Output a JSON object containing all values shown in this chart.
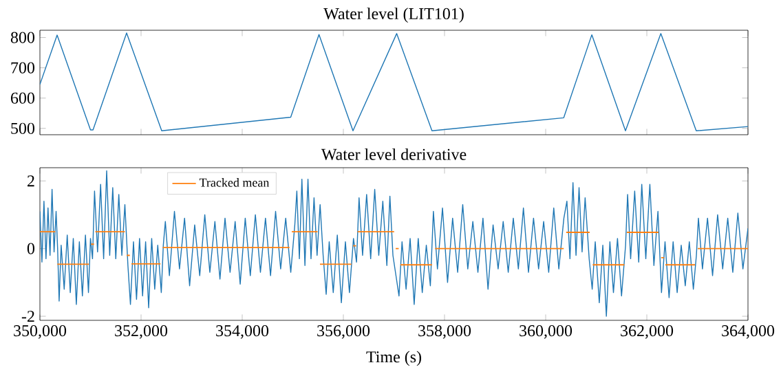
{
  "chart_data": [
    {
      "type": "line",
      "title": "Water level (LIT101)",
      "tick_labels": "y",
      "xlim": [
        350000,
        364000
      ],
      "ylim": [
        479,
        824
      ],
      "xticks": [
        350000,
        352000,
        354000,
        356000,
        358000,
        360000,
        362000,
        364000
      ],
      "yticks": [
        500,
        600,
        700,
        800
      ],
      "series": [
        {
          "color": "#1f77b4",
          "x": [
            350000,
            350340,
            351000,
            351050,
            351714,
            352408,
            354959,
            355518,
            356190,
            357054,
            357752,
            360357,
            360912,
            361578,
            362277,
            362977,
            364000
          ],
          "values": [
            645,
            808,
            495,
            495,
            815,
            492,
            537,
            810,
            492,
            813,
            492,
            535,
            809,
            492,
            813,
            492,
            506
          ]
        }
      ]
    },
    {
      "type": "line",
      "title": "Water level derivative",
      "xlabel": "Time (s)",
      "legend": "top left",
      "xlim": [
        350000,
        364000
      ],
      "ylim": [
        -2.12,
        2.39
      ],
      "xticks": [
        {
          "value": 350000,
          "label": "350,000"
        },
        {
          "value": 352000,
          "label": "352,000"
        },
        {
          "value": 354000,
          "label": "354,000"
        },
        {
          "value": 356000,
          "label": "356,000"
        },
        {
          "value": 358000,
          "label": "358,000"
        },
        {
          "value": 360000,
          "label": "360,000"
        },
        {
          "value": 362000,
          "label": "362,000"
        },
        {
          "value": 364000,
          "label": "364,000"
        }
      ],
      "yticks": [
        -2,
        0,
        2
      ],
      "series": [
        {
          "color": "#1f77b4",
          "x": [
            350000,
            350040,
            350080,
            350120,
            350160,
            350200,
            350240,
            350280,
            350320,
            350350,
            350380,
            350420,
            350480,
            350540,
            350600,
            350660,
            350720,
            350780,
            350840,
            350900,
            350960,
            351000,
            351040,
            351080,
            351140,
            351200,
            351260,
            351320,
            351380,
            351440,
            351500,
            351560,
            351620,
            351680,
            351740,
            351790,
            351850,
            351910,
            351970,
            352030,
            352090,
            352150,
            352210,
            352270,
            352330,
            352400,
            352440,
            352480,
            352560,
            352660,
            352760,
            352860,
            352960,
            353060,
            353160,
            353260,
            353360,
            353460,
            353560,
            353660,
            353760,
            353860,
            353960,
            354060,
            354160,
            354260,
            354360,
            354460,
            354560,
            354660,
            354760,
            354860,
            354960,
            355040,
            355080,
            355130,
            355180,
            355240,
            355300,
            355360,
            355420,
            355480,
            355540,
            355600,
            355660,
            355720,
            355800,
            355880,
            355960,
            356040,
            356120,
            356200,
            356260,
            356310,
            356380,
            356460,
            356540,
            356620,
            356700,
            356780,
            356860,
            356920,
            356980,
            357040,
            357100,
            357160,
            357240,
            357320,
            357400,
            357480,
            357560,
            357640,
            357720,
            357780,
            357860,
            357960,
            358060,
            358160,
            358260,
            358360,
            358460,
            358560,
            358660,
            358760,
            358860,
            358960,
            359060,
            359160,
            359260,
            359360,
            359460,
            359560,
            359660,
            359760,
            359860,
            359960,
            360060,
            360160,
            360260,
            360360,
            360420,
            360480,
            360540,
            360600,
            360660,
            360720,
            360780,
            360860,
            360920,
            360980,
            361060,
            361130,
            361200,
            361270,
            361340,
            361420,
            361500,
            361580,
            361620,
            361680,
            361760,
            361840,
            361900,
            361980,
            362060,
            362140,
            362220,
            362290,
            362360,
            362440,
            362520,
            362600,
            362680,
            362760,
            362840,
            362920,
            362980,
            363020,
            363100,
            363200,
            363300,
            363400,
            363500,
            363600,
            363700,
            363800,
            363900,
            364000
          ],
          "values": [
            1.1,
            -0.4,
            1.4,
            -0.3,
            1.2,
            -0.2,
            1.75,
            -0.1,
            1.1,
            0.0,
            -1.55,
            0.1,
            -1.2,
            0.4,
            -1.3,
            0.3,
            -1.65,
            0.2,
            -1.4,
            0.4,
            -1.3,
            0.3,
            -0.3,
            1.7,
            -0.1,
            1.9,
            -0.3,
            2.3,
            -0.2,
            1.8,
            -0.3,
            1.6,
            -0.2,
            1.3,
            -0.5,
            -1.65,
            0.2,
            -1.5,
            0.3,
            -1.4,
            0.2,
            -1.75,
            0.3,
            -1.2,
            0.1,
            -1.3,
            0.1,
            0.8,
            -0.8,
            1.1,
            -0.6,
            0.9,
            -1.1,
            0.7,
            -0.8,
            1.0,
            -0.7,
            0.8,
            -0.9,
            0.9,
            -0.7,
            0.8,
            -1.05,
            0.9,
            -0.8,
            1.0,
            -0.7,
            0.9,
            -0.8,
            1.1,
            -0.6,
            0.9,
            -0.7,
            0.7,
            1.7,
            -0.3,
            2.05,
            -0.5,
            2.05,
            -0.3,
            1.5,
            -0.2,
            1.3,
            -0.2,
            -1.35,
            0.2,
            -1.3,
            0.4,
            -1.6,
            0.2,
            -1.3,
            0.3,
            -0.4,
            1.5,
            -0.2,
            1.6,
            -0.3,
            1.75,
            -0.2,
            1.4,
            -0.5,
            1.55,
            -0.2,
            -0.8,
            -1.4,
            0.2,
            -1.2,
            0.3,
            -1.65,
            0.3,
            -1.3,
            0.1,
            -1.1,
            1.1,
            -0.6,
            1.2,
            -1.0,
            0.9,
            -0.7,
            1.3,
            -0.6,
            0.8,
            -0.7,
            0.9,
            -1.2,
            0.7,
            -0.6,
            0.8,
            -0.7,
            0.9,
            -0.6,
            1.2,
            -0.7,
            0.9,
            -0.6,
            0.8,
            -0.7,
            1.2,
            -0.6,
            0.9,
            1.4,
            -0.3,
            1.95,
            -0.2,
            1.8,
            -0.1,
            1.5,
            -0.3,
            -1.2,
            0.2,
            -1.6,
            0.1,
            -2.0,
            0.2,
            -1.3,
            0.3,
            -1.4,
            0.1,
            1.6,
            -0.3,
            1.7,
            -0.4,
            1.9,
            -0.3,
            1.9,
            -0.5,
            1.1,
            -1.3,
            0.2,
            -1.45,
            0.2,
            -1.3,
            0.1,
            -1.1,
            0.2,
            -1.2,
            -0.2,
            0.9,
            -0.6,
            0.9,
            -0.8,
            1.0,
            -0.6,
            0.9,
            -0.7,
            1.05,
            -0.6,
            0.6
          ]
        },
        {
          "name": "Tracked mean",
          "color": "#ff7f0e",
          "x": [
            350000,
            350304,
            350320,
            350343,
            350970,
            351000,
            351010,
            351070,
            351080,
            351096,
            351679,
            351700,
            351718,
            351778,
            351790,
            351810,
            352384,
            352400,
            352427,
            354935,
            354950,
            354980,
            355489,
            355510,
            355537,
            356159,
            356180,
            356193,
            356253,
            356265,
            356280,
            357004,
            357030,
            357034,
            357094,
            357100,
            357129,
            357752,
            357780,
            357812,
            360357,
            360380,
            360406,
            360870,
            360900,
            360930,
            361555,
            361580,
            361605,
            362231,
            362270,
            362283,
            362343,
            362352,
            362367,
            362952,
            362980,
            363007,
            364000
          ],
          "values": [
            0.5,
            0.5,
            null,
            -0.46,
            -0.46,
            null,
            0.13,
            0.13,
            null,
            0.5,
            0.5,
            null,
            -0.2,
            -0.2,
            null,
            -0.45,
            -0.45,
            null,
            0.03,
            0.03,
            null,
            0.5,
            0.5,
            null,
            -0.46,
            -0.46,
            null,
            0.08,
            0.08,
            null,
            0.5,
            0.5,
            null,
            0.0,
            0.0,
            null,
            -0.48,
            -0.48,
            null,
            0.0,
            0.0,
            null,
            0.48,
            0.48,
            null,
            -0.48,
            -0.48,
            null,
            0.48,
            0.48,
            null,
            -0.27,
            -0.27,
            null,
            -0.48,
            -0.48,
            null,
            0.0,
            0.0
          ]
        }
      ]
    }
  ]
}
